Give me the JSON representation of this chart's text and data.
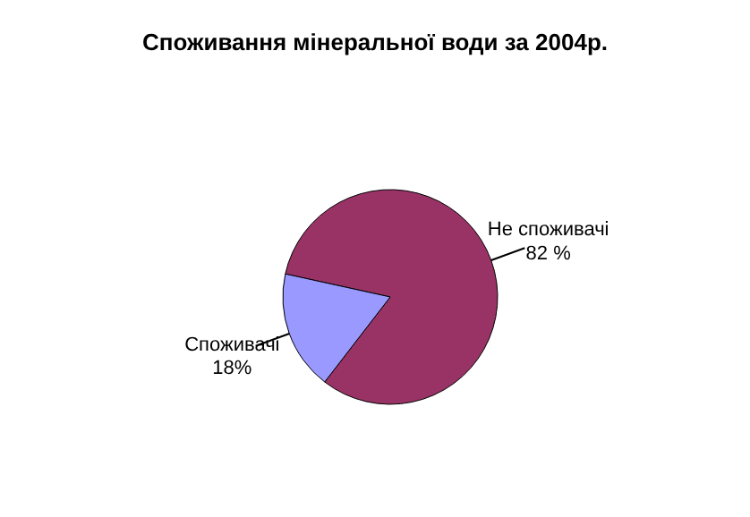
{
  "chart_data": {
    "type": "pie",
    "title": "Споживання мінеральної води за 2004р.",
    "categories": [
      "Не споживачі",
      "Споживачі"
    ],
    "values": [
      82,
      18
    ],
    "colors": [
      "#993366",
      "#9999ff"
    ],
    "value_labels": [
      "82 %",
      "18%"
    ]
  }
}
